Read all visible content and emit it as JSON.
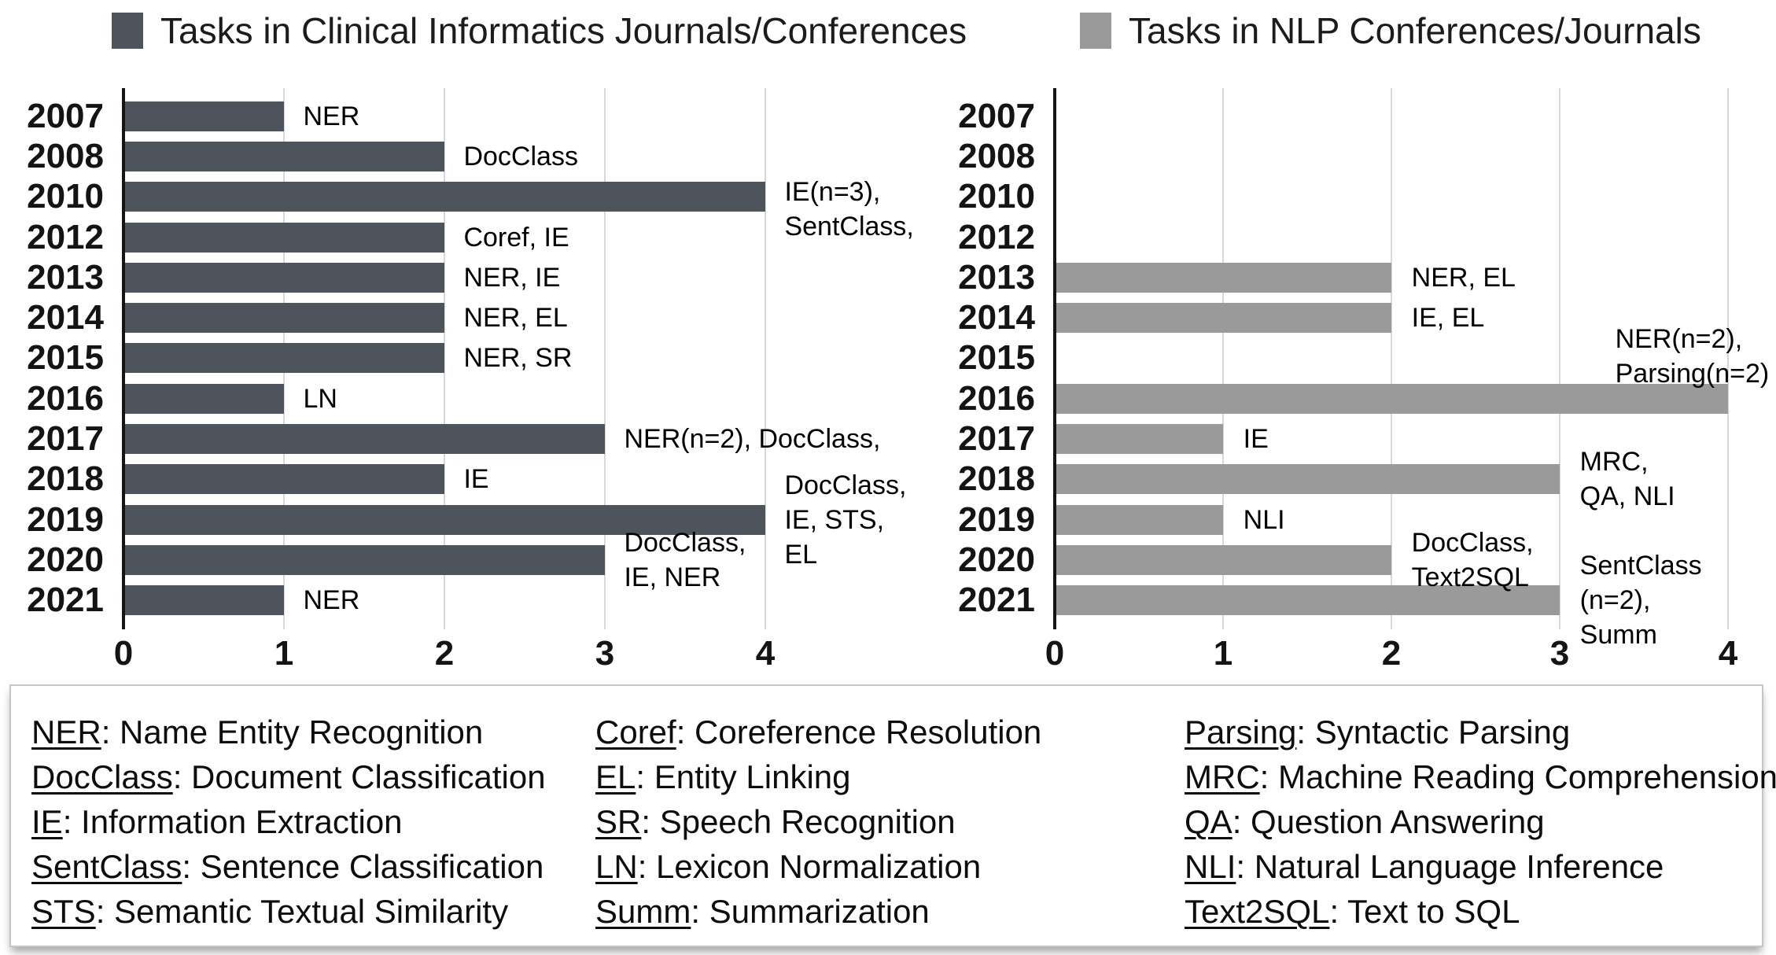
{
  "top_legend": [
    {
      "label": "Tasks in Clinical Informatics Journals/Conferences",
      "color": "#4e545c"
    },
    {
      "label": "Tasks in NLP Conferences/Journals",
      "color": "#9a9a9a"
    }
  ],
  "chart_data": [
    {
      "type": "bar",
      "orientation": "horizontal",
      "title": "Tasks in Clinical Informatics Journals/Conferences",
      "bar_color": "#4e545c",
      "xlim": [
        0,
        4
      ],
      "xticks": [
        0,
        1,
        2,
        3,
        4
      ],
      "grid": true,
      "legend_position": "top-left",
      "categories": [
        "2007",
        "2008",
        "2010",
        "2012",
        "2013",
        "2014",
        "2015",
        "2016",
        "2017",
        "2018",
        "2019",
        "2020",
        "2021"
      ],
      "values": [
        1,
        2,
        4,
        2,
        2,
        2,
        2,
        1,
        3,
        2,
        4,
        3,
        1
      ],
      "annotations": [
        {
          "category": "2007",
          "lines": [
            "NER"
          ]
        },
        {
          "category": "2008",
          "lines": [
            "DocClass"
          ]
        },
        {
          "category": "2010",
          "lines": [
            "IE(n=3),",
            "SentClass,"
          ],
          "dy": 0.3
        },
        {
          "category": "2012",
          "lines": [
            "Coref, IE"
          ]
        },
        {
          "category": "2013",
          "lines": [
            "NER, IE"
          ]
        },
        {
          "category": "2014",
          "lines": [
            "NER, EL"
          ]
        },
        {
          "category": "2015",
          "lines": [
            "NER, SR"
          ]
        },
        {
          "category": "2016",
          "lines": [
            "LN"
          ]
        },
        {
          "category": "2017",
          "lines": [
            "NER(n=2), DocClass,"
          ]
        },
        {
          "category": "2018",
          "lines": [
            "IE"
          ]
        },
        {
          "category": "2019",
          "lines": [
            "DocClass,",
            "IE, STS,",
            "EL"
          ]
        },
        {
          "category": "2020",
          "lines": [
            "DocClass,",
            "IE, NER"
          ]
        },
        {
          "category": "2021",
          "lines": [
            "NER"
          ]
        }
      ]
    },
    {
      "type": "bar",
      "orientation": "horizontal",
      "title": "Tasks in NLP Conferences/Journals",
      "bar_color": "#9a9a9a",
      "xlim": [
        0,
        4
      ],
      "xticks": [
        0,
        1,
        2,
        3,
        4
      ],
      "grid": true,
      "legend_position": "top-right",
      "categories": [
        "2007",
        "2008",
        "2010",
        "2012",
        "2013",
        "2014",
        "2015",
        "2016",
        "2017",
        "2018",
        "2019",
        "2020",
        "2021"
      ],
      "values": [
        0,
        0,
        0,
        0,
        2,
        2,
        0,
        4,
        1,
        3,
        1,
        2,
        3
      ],
      "annotations": [
        {
          "category": "2013",
          "lines": [
            "NER, EL"
          ]
        },
        {
          "category": "2014",
          "lines": [
            "IE, EL"
          ]
        },
        {
          "category": "2016",
          "lines": [
            "NER(n=2),",
            "Parsing(n=2)"
          ],
          "at": 3.33,
          "dy": -1.05
        },
        {
          "category": "2017",
          "lines": [
            "IE"
          ]
        },
        {
          "category": "2018",
          "lines": [
            "MRC,",
            "QA, NLI"
          ]
        },
        {
          "category": "2019",
          "lines": [
            "NLI"
          ]
        },
        {
          "category": "2020",
          "lines": [
            "DocClass,",
            "Text2SQL"
          ]
        },
        {
          "category": "2021",
          "lines": [
            "SentClass",
            "(n=2),",
            "Summ"
          ]
        }
      ]
    }
  ],
  "abbreviations": {
    "columns": [
      [
        {
          "abbr": "NER",
          "desc": "Name Entity Recognition"
        },
        {
          "abbr": "DocClass",
          "desc": "Document Classification"
        },
        {
          "abbr": "IE",
          "desc": "Information Extraction"
        },
        {
          "abbr": "SentClass",
          "desc": "Sentence Classification"
        },
        {
          "abbr": "STS",
          "desc": "Semantic Textual Similarity"
        }
      ],
      [
        {
          "abbr": "Coref",
          "desc": "Coreference Resolution"
        },
        {
          "abbr": "EL",
          "desc": "Entity Linking"
        },
        {
          "abbr": "SR",
          "desc": "Speech Recognition"
        },
        {
          "abbr": "LN",
          "desc": "Lexicon Normalization"
        },
        {
          "abbr": "Summ",
          "desc": "Summarization"
        }
      ],
      [
        {
          "abbr": "Parsing",
          "desc": "Syntactic Parsing"
        },
        {
          "abbr": "MRC",
          "desc": "Machine Reading Comprehension"
        },
        {
          "abbr": "QA",
          "desc": "Question Answering"
        },
        {
          "abbr": "NLI",
          "desc": "Natural Language Inference"
        },
        {
          "abbr": "Text2SQL",
          "desc": "Text to SQL"
        }
      ]
    ]
  }
}
